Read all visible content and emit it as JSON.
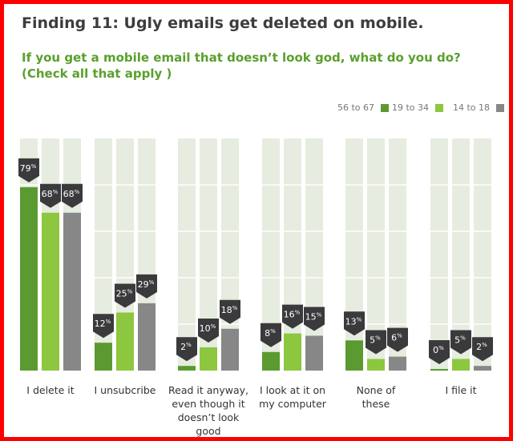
{
  "title": "Finding 11: Ugly emails get deleted on mobile.",
  "subtitle_line1": "If you get a mobile email that doesn’t look god, what do you do?",
  "subtitle_line2": "(Check all that apply )",
  "chart_data": {
    "type": "bar",
    "categories": [
      "I delete it",
      "I unsubcribe",
      "Read it anyway, even though it doesn’t look good",
      "I look at it on my computer",
      "None of these",
      "I file it"
    ],
    "series": [
      {
        "name": "56 to 67",
        "color": "#5a9a30",
        "values": [
          79,
          12,
          2,
          8,
          13,
          0
        ]
      },
      {
        "name": "19 to 34",
        "color": "#8dc63f",
        "values": [
          68,
          25,
          10,
          16,
          5,
          5
        ]
      },
      {
        "name": "14 to 18",
        "color": "#878787",
        "values": [
          68,
          29,
          18,
          15,
          6,
          2
        ]
      }
    ],
    "value_suffix": "%",
    "ylim": [
      0,
      100
    ],
    "legend": "top-right",
    "background_column_color": "#e6ecdf"
  }
}
